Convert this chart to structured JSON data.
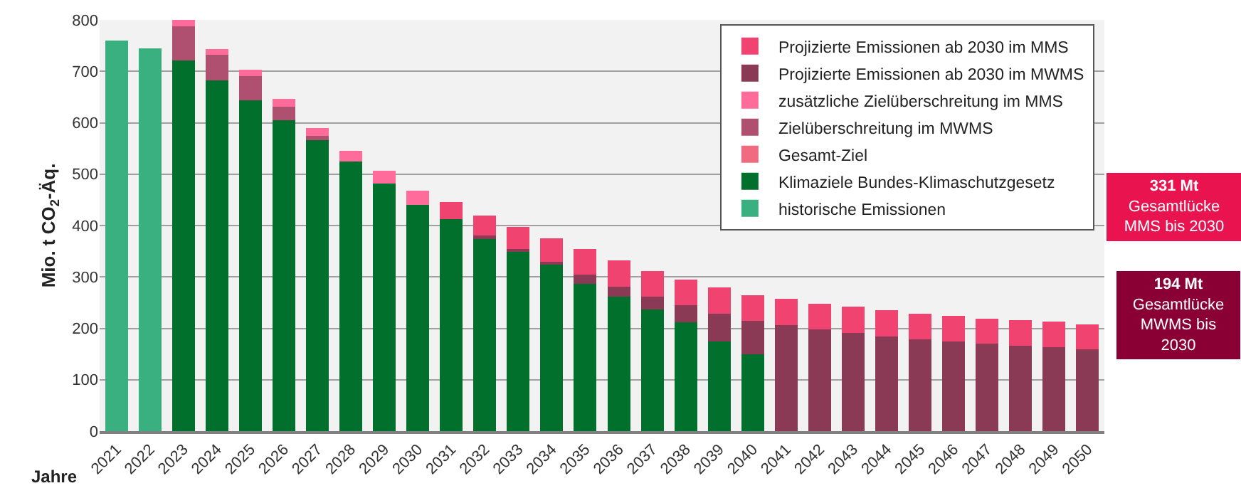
{
  "chart_data": {
    "type": "bar",
    "stacked": true,
    "xlabel": "Jahre",
    "ylabel": "Mio. t CO$_{2}$-Äq.",
    "categories": [
      "2021",
      "2022",
      "2023",
      "2024",
      "2025",
      "2026",
      "2027",
      "2028",
      "2029",
      "2030",
      "2031",
      "2032",
      "2033",
      "2034",
      "2035",
      "2036",
      "2037",
      "2038",
      "2039",
      "2040",
      "2041",
      "2042",
      "2043",
      "2044",
      "2045",
      "2046",
      "2047",
      "2048",
      "2049",
      "2050"
    ],
    "series": [
      {
        "name": "historische Emissionen",
        "color": "#3aaf80",
        "values": [
          760,
          745,
          null,
          null,
          null,
          null,
          null,
          null,
          null,
          null,
          null,
          null,
          null,
          null,
          null,
          null,
          null,
          null,
          null,
          null,
          null,
          null,
          null,
          null,
          null,
          null,
          null,
          null,
          null,
          null
        ]
      },
      {
        "name": "Klimaziele Bundes-Klimaschutzgesetz",
        "color": "#00702c",
        "values": [
          null,
          null,
          721,
          683,
          644,
          605,
          566,
          524,
          482,
          440,
          412,
          375,
          350,
          325,
          287,
          262,
          237,
          212,
          175,
          149,
          null,
          null,
          null,
          null,
          null,
          null,
          null,
          null,
          null,
          null
        ]
      },
      {
        "name": "Gesamt-Ziel",
        "color": "#f06a80",
        "values": [
          null,
          null,
          null,
          null,
          null,
          null,
          null,
          null,
          null,
          null,
          null,
          null,
          null,
          null,
          null,
          null,
          null,
          null,
          null,
          null,
          null,
          null,
          null,
          null,
          null,
          null,
          null,
          null,
          null,
          null
        ]
      },
      {
        "name": "Zielüberschreitung im MWMS",
        "color": "#b05070",
        "values": [
          null,
          null,
          67,
          49,
          46,
          26,
          9,
          null,
          null,
          null,
          null,
          null,
          null,
          null,
          null,
          null,
          null,
          null,
          null,
          null,
          null,
          null,
          null,
          null,
          null,
          null,
          null,
          null,
          null,
          null
        ]
      },
      {
        "name": "zusätzliche Zielüberschreitung im MMS",
        "color": "#ff6b9b",
        "values": [
          null,
          null,
          12,
          11,
          13,
          15,
          15,
          21,
          24,
          28,
          null,
          null,
          null,
          null,
          null,
          null,
          null,
          null,
          null,
          null,
          null,
          null,
          null,
          null,
          null,
          null,
          null,
          null,
          null,
          null
        ]
      },
      {
        "name": "Projizierte Emissionen ab 2030 im MWMS",
        "color": "#8b3a55",
        "values": [
          null,
          null,
          null,
          null,
          null,
          null,
          null,
          null,
          null,
          null,
          null,
          5,
          5,
          4,
          18,
          19,
          25,
          33,
          53,
          66,
          206,
          198,
          191,
          184,
          178,
          174,
          170,
          166,
          163,
          159
        ]
      },
      {
        "name": "Projizierte Emissionen ab 2030 im MMS",
        "color": "#f0436f",
        "values": [
          null,
          null,
          null,
          null,
          null,
          null,
          null,
          null,
          null,
          null,
          33,
          39,
          42,
          46,
          49,
          51,
          50,
          50,
          51,
          50,
          51,
          50,
          51,
          51,
          51,
          50,
          49,
          50,
          50,
          49
        ]
      }
    ],
    "ylim": [
      0,
      800
    ],
    "yticks": [
      0,
      100,
      200,
      300,
      400,
      500,
      600,
      700,
      800
    ],
    "grid": "y",
    "legend": "top right",
    "annotations": [
      "331 Mt\nGesamtlücke\nMMS bis 2030",
      "194 Mt\nGesamtlücke\nMWMS bis\n2030"
    ]
  }
}
